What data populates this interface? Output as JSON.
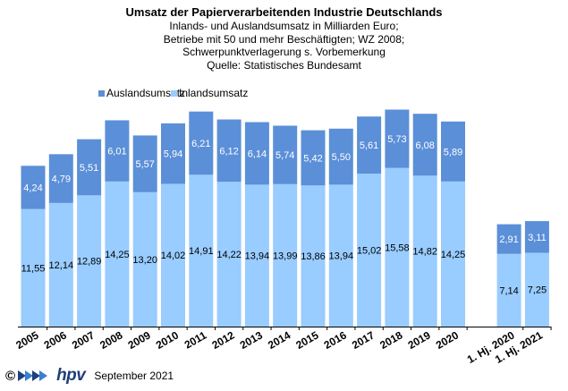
{
  "title": "Umsatz der Papierverarbeitenden Industrie Deutschlands",
  "subtitle_lines": [
    "Inlands- und Auslandsumsatz in Milliarden Euro;",
    "Betriebe mit 50 und mehr Beschäftigten;  WZ 2008;",
    "Schwerpunktverlagerung  s. Vorbemerkung",
    "Quelle: Statistisches Bundesamt"
  ],
  "footer": {
    "copyright": "©",
    "logo_text": "hpv",
    "date": "September 2021"
  },
  "colors": {
    "inland": "#99ccff",
    "ausland": "#5b8fd8"
  },
  "chart_data": {
    "type": "bar",
    "stacked": true,
    "categories": [
      "2005",
      "2006",
      "2007",
      "2008",
      "2009",
      "2010",
      "2011",
      "2012",
      "2013",
      "2014",
      "2015",
      "2016",
      "2017",
      "2018",
      "2019",
      "2020",
      "1. Hj. 2020",
      "1. Hj. 2021"
    ],
    "gap_after_index": 15,
    "series": [
      {
        "name": "Inlandsumsatz",
        "values": [
          11.55,
          12.14,
          12.89,
          14.25,
          13.2,
          14.02,
          14.91,
          14.22,
          13.94,
          13.99,
          13.86,
          13.94,
          15.02,
          15.58,
          14.82,
          14.25,
          7.14,
          7.25
        ]
      },
      {
        "name": "Auslandsumsatz",
        "values": [
          4.24,
          4.79,
          5.51,
          6.01,
          5.57,
          5.94,
          6.21,
          6.12,
          6.14,
          5.74,
          5.42,
          5.5,
          5.61,
          5.73,
          6.08,
          5.89,
          2.91,
          3.11
        ]
      }
    ],
    "legend": [
      "Auslandsumsatz",
      "Inlandsumsatz"
    ],
    "legend_position": "top-left",
    "ylim": [
      0,
      23
    ],
    "decimal_separator": ","
  }
}
